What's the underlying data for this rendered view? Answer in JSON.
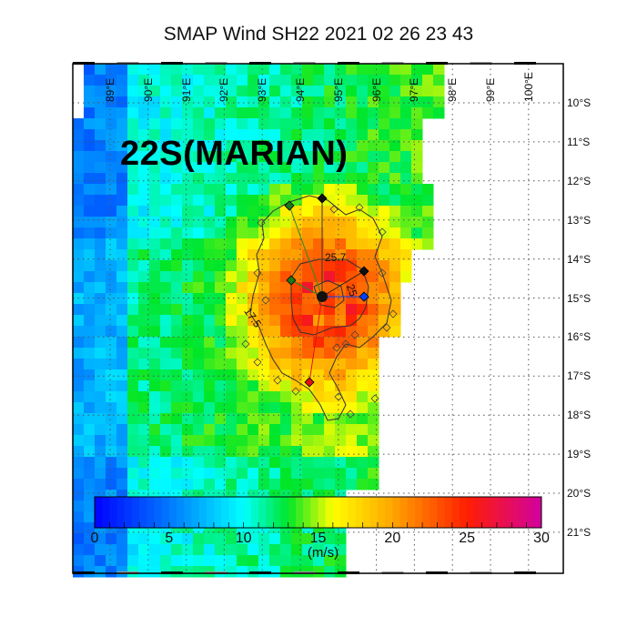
{
  "title": "SMAP Wind  SH22  2021 02 26 23 43",
  "storm_label": "22S(MARIAN)",
  "lon_labels": [
    "89°E",
    "90°E",
    "91°E",
    "92°E",
    "93°E",
    "94°E",
    "95°E",
    "96°E",
    "97°E",
    "98°E",
    "99°E",
    "100°E"
  ],
  "lat_labels": [
    "10°S",
    "11°S",
    "12°S",
    "13°S",
    "14°S",
    "15°S",
    "16°S",
    "17°S",
    "18°S",
    "19°S",
    "20°S",
    "21°S"
  ],
  "colorbar": {
    "ticks": [
      "0",
      "5",
      "10",
      "15",
      "20",
      "25",
      "30"
    ],
    "unit": "(m/s)",
    "range": [
      0,
      30
    ]
  },
  "contour_labels": [
    "25.7",
    "25",
    "17.5"
  ],
  "colors": {
    "frame": "#000000",
    "grid": "#555555"
  }
}
